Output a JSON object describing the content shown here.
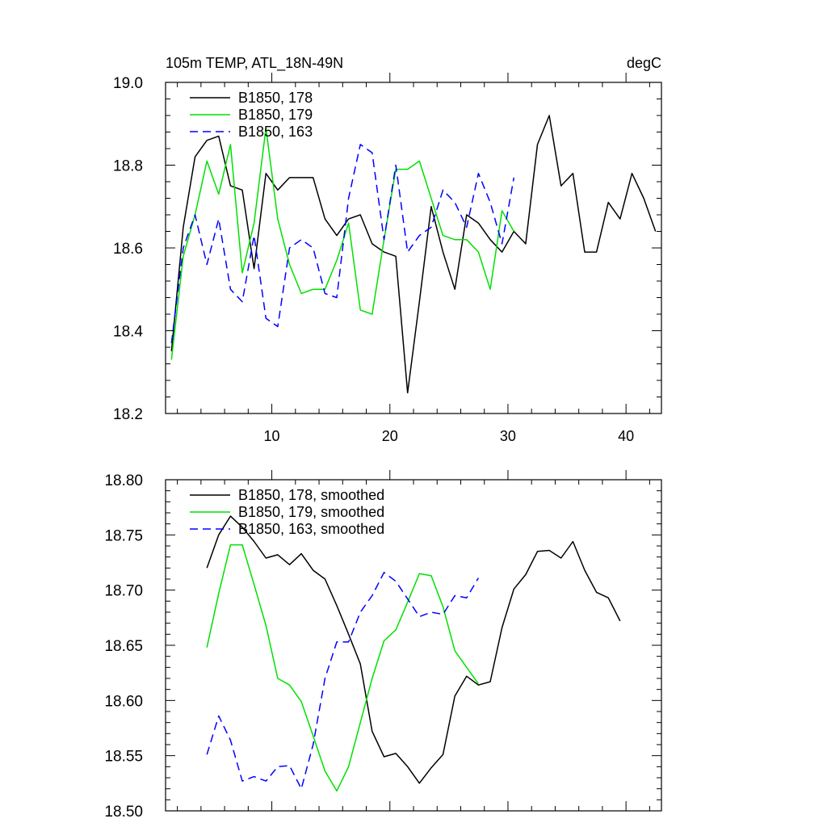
{
  "chart_data": [
    {
      "type": "line",
      "title": "105m TEMP, ATL_18N-49N",
      "units_label": "degC",
      "xlim": [
        1,
        43
      ],
      "ylim": [
        18.2,
        19.0
      ],
      "x_ticks": [
        10,
        20,
        30,
        40
      ],
      "x_tick_labels": [
        "10",
        "20",
        "30",
        "40"
      ],
      "y_ticks": [
        18.2,
        18.4,
        18.6,
        18.8,
        19.0
      ],
      "y_tick_labels": [
        "18.2",
        "18.4",
        "18.6",
        "18.8",
        "19.0"
      ],
      "legend_position": "top-left",
      "grid": false,
      "series": [
        {
          "name": "B1850, 178",
          "color": "#000000",
          "dash": "solid",
          "x": [
            1.5,
            2.5,
            3.5,
            4.5,
            5.5,
            6.5,
            7.5,
            8.5,
            9.5,
            10.5,
            11.5,
            12.5,
            13.5,
            14.5,
            15.5,
            16.5,
            17.5,
            18.5,
            19.5,
            20.5,
            21.5,
            22.5,
            23.5,
            24.5,
            25.5,
            26.5,
            27.5,
            28.5,
            29.5,
            30.5,
            31.5,
            32.5,
            33.5,
            34.5,
            35.5,
            36.5,
            37.5,
            38.5,
            39.5,
            40.5,
            41.5,
            42.5
          ],
          "y": [
            18.35,
            18.65,
            18.82,
            18.86,
            18.87,
            18.75,
            18.74,
            18.55,
            18.78,
            18.74,
            18.77,
            18.77,
            18.77,
            18.67,
            18.63,
            18.67,
            18.68,
            18.61,
            18.59,
            18.58,
            18.25,
            18.47,
            18.7,
            18.59,
            18.5,
            18.68,
            18.66,
            18.62,
            18.59,
            18.64,
            18.61,
            18.85,
            18.92,
            18.75,
            18.78,
            18.59,
            18.59,
            18.71,
            18.67,
            18.78,
            18.72,
            18.64
          ]
        },
        {
          "name": "B1850, 179",
          "color": "#00e000",
          "dash": "solid",
          "x": [
            1.5,
            2.5,
            3.5,
            4.5,
            5.5,
            6.5,
            7.5,
            8.5,
            9.5,
            10.5,
            11.5,
            12.5,
            13.5,
            14.5,
            15.5,
            16.5,
            17.5,
            18.5,
            19.5,
            20.5,
            21.5,
            22.5,
            23.5,
            24.5,
            25.5,
            26.5,
            27.5,
            28.5,
            29.5,
            30.5
          ],
          "y": [
            18.33,
            18.58,
            18.68,
            18.81,
            18.73,
            18.85,
            18.54,
            18.66,
            18.89,
            18.67,
            18.56,
            18.49,
            18.5,
            18.5,
            18.57,
            18.66,
            18.45,
            18.44,
            18.62,
            18.79,
            18.79,
            18.81,
            18.72,
            18.63,
            18.62,
            18.62,
            18.59,
            18.5,
            18.69,
            18.64
          ]
        },
        {
          "name": "B1850, 163",
          "color": "#0000ff",
          "dash": "dashed",
          "x": [
            1.5,
            2.5,
            3.5,
            4.5,
            5.5,
            6.5,
            7.5,
            8.5,
            9.5,
            10.5,
            11.5,
            12.5,
            13.5,
            14.5,
            15.5,
            16.5,
            17.5,
            18.5,
            19.5,
            20.5,
            21.5,
            22.5,
            23.5,
            24.5,
            25.5,
            26.5,
            27.5,
            28.5,
            29.5,
            30.5
          ],
          "y": [
            18.37,
            18.6,
            18.68,
            18.56,
            18.67,
            18.5,
            18.47,
            18.63,
            18.43,
            18.41,
            18.6,
            18.62,
            18.6,
            18.49,
            18.48,
            18.72,
            18.85,
            18.83,
            18.62,
            18.8,
            18.59,
            18.63,
            18.65,
            18.74,
            18.71,
            18.65,
            18.78,
            18.71,
            18.61,
            18.77
          ]
        }
      ]
    },
    {
      "type": "line",
      "xlim": [
        1,
        43
      ],
      "ylim": [
        18.5,
        18.8
      ],
      "x_ticks": [
        10,
        20,
        30,
        40
      ],
      "x_tick_labels": [],
      "y_ticks": [
        18.5,
        18.55,
        18.6,
        18.65,
        18.7,
        18.75,
        18.8
      ],
      "y_tick_labels": [
        "18.50",
        "18.55",
        "18.60",
        "18.65",
        "18.70",
        "18.75",
        "18.80"
      ],
      "legend_position": "top-left",
      "grid": false,
      "series": [
        {
          "name": "B1850, 178, smoothed",
          "color": "#000000",
          "dash": "solid",
          "x": [
            4.5,
            5.5,
            6.5,
            7.5,
            8.5,
            9.5,
            10.5,
            11.5,
            12.5,
            13.5,
            14.5,
            15.5,
            16.5,
            17.5,
            18.5,
            19.5,
            20.5,
            21.5,
            22.5,
            23.5,
            24.5,
            25.5,
            26.5,
            27.5,
            28.5,
            29.5,
            30.5,
            31.5,
            32.5,
            33.5,
            34.5,
            35.5,
            36.5,
            37.5,
            38.5,
            39.5
          ],
          "y": [
            18.72,
            18.75,
            18.767,
            18.757,
            18.744,
            18.729,
            18.732,
            18.723,
            18.733,
            18.718,
            18.71,
            18.686,
            18.66,
            18.633,
            18.572,
            18.549,
            18.552,
            18.54,
            18.525,
            18.539,
            18.551,
            18.604,
            18.622,
            18.614,
            18.617,
            18.666,
            18.701,
            18.714,
            18.735,
            18.736,
            18.729,
            18.744,
            18.718,
            18.698,
            18.693,
            18.672
          ]
        },
        {
          "name": "B1850, 179, smoothed",
          "color": "#00e000",
          "dash": "solid",
          "x": [
            4.5,
            5.5,
            6.5,
            7.5,
            8.5,
            9.5,
            10.5,
            11.5,
            12.5,
            13.5,
            14.5,
            15.5,
            16.5,
            17.5,
            18.5,
            19.5,
            20.5,
            21.5,
            22.5,
            23.5,
            24.5,
            25.5,
            26.5,
            27.5
          ],
          "y": [
            18.648,
            18.697,
            18.741,
            18.741,
            18.705,
            18.668,
            18.62,
            18.614,
            18.599,
            18.568,
            18.536,
            18.518,
            18.54,
            18.58,
            18.62,
            18.654,
            18.664,
            18.689,
            18.715,
            18.713,
            18.685,
            18.645,
            18.63,
            18.615
          ]
        },
        {
          "name": "B1850, 163, smoothed",
          "color": "#0000ff",
          "dash": "dashed",
          "x": [
            4.5,
            5.5,
            6.5,
            7.5,
            8.5,
            9.5,
            10.5,
            11.5,
            12.5,
            13.5,
            14.5,
            15.5,
            16.5,
            17.5,
            18.5,
            19.5,
            20.5,
            21.5,
            22.5,
            23.5,
            24.5,
            25.5,
            26.5,
            27.5
          ],
          "y": [
            18.551,
            18.586,
            18.564,
            18.527,
            18.531,
            18.527,
            18.54,
            18.541,
            18.52,
            18.56,
            18.62,
            18.653,
            18.653,
            18.68,
            18.695,
            18.716,
            18.708,
            18.692,
            18.676,
            18.68,
            18.678,
            18.695,
            18.693,
            18.711
          ]
        }
      ]
    }
  ]
}
